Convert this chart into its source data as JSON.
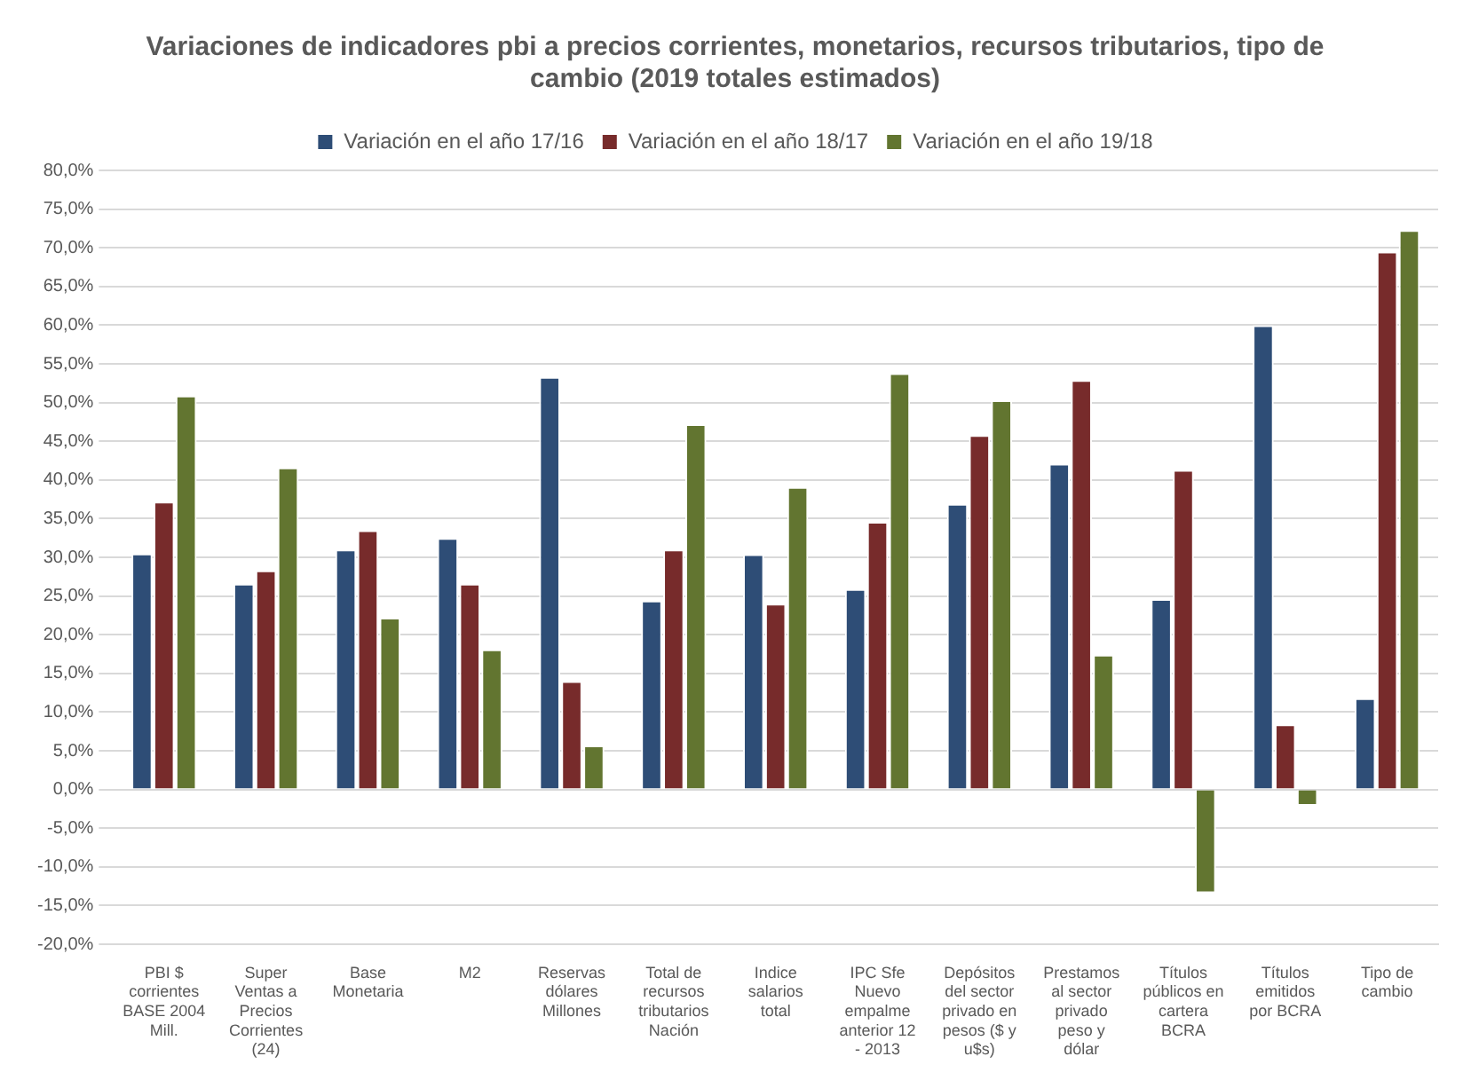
{
  "chart_data": {
    "type": "bar",
    "title": "Variaciones de indicadores pbi a precios corrientes, monetarios, recursos tributarios, tipo de cambio (2019 totales estimados)",
    "categories": [
      "PBI $ corrientes BASE 2004 Mill.",
      "Super Ventas a Precios Corrientes (24)",
      "Base Monetaria",
      "M2",
      "Reservas dólares Millones",
      "Total de recursos tributarios Nación",
      "Indice salarios total",
      "IPC Sfe Nuevo empalme anterior 12 - 2013",
      "Depósitos del sector privado en pesos ($ y u$s)",
      "Prestamos al sector privado peso y dólar",
      "Títulos públicos en cartera BCRA",
      "Títulos emitidos por BCRA",
      "Tipo de cambio"
    ],
    "series": [
      {
        "name": "Variación en el año 17/16",
        "color": "#2e4d76",
        "values": [
          30.5,
          26.6,
          31.0,
          32.5,
          53.3,
          24.4,
          30.4,
          25.9,
          36.9,
          42.1,
          24.6,
          60.0,
          11.8
        ]
      },
      {
        "name": "Variación en el año 18/17",
        "color": "#772b2b",
        "values": [
          37.2,
          28.3,
          33.5,
          26.6,
          14.0,
          31.0,
          24.0,
          34.6,
          45.8,
          52.9,
          41.3,
          8.4,
          69.5
        ]
      },
      {
        "name": "Variación en el año 19/18",
        "color": "#627530",
        "values": [
          50.9,
          41.6,
          22.2,
          18.1,
          5.7,
          47.2,
          39.1,
          53.8,
          50.3,
          17.4,
          -13.4,
          -2.1,
          72.3
        ]
      }
    ],
    "ylim": [
      -20,
      80
    ],
    "yticks": [
      {
        "value": -20,
        "label": "-20,0%"
      },
      {
        "value": -15,
        "label": "-15,0%"
      },
      {
        "value": -10,
        "label": "-10,0%"
      },
      {
        "value": -5,
        "label": "-5,0%"
      },
      {
        "value": 0,
        "label": "0,0%"
      },
      {
        "value": 5,
        "label": "5,0%"
      },
      {
        "value": 10,
        "label": "10,0%"
      },
      {
        "value": 15,
        "label": "15,0%"
      },
      {
        "value": 20,
        "label": "20,0%"
      },
      {
        "value": 25,
        "label": "25,0%"
      },
      {
        "value": 30,
        "label": "30,0%"
      },
      {
        "value": 35,
        "label": "35,0%"
      },
      {
        "value": 40,
        "label": "40,0%"
      },
      {
        "value": 45,
        "label": "45,0%"
      },
      {
        "value": 50,
        "label": "50,0%"
      },
      {
        "value": 55,
        "label": "55,0%"
      },
      {
        "value": 60,
        "label": "60,0%"
      },
      {
        "value": 65,
        "label": "65,0%"
      },
      {
        "value": 70,
        "label": "70,0%"
      },
      {
        "value": 75,
        "label": "75,0%"
      },
      {
        "value": 80,
        "label": "80,0%"
      }
    ],
    "grid": "y",
    "legend": "top"
  }
}
